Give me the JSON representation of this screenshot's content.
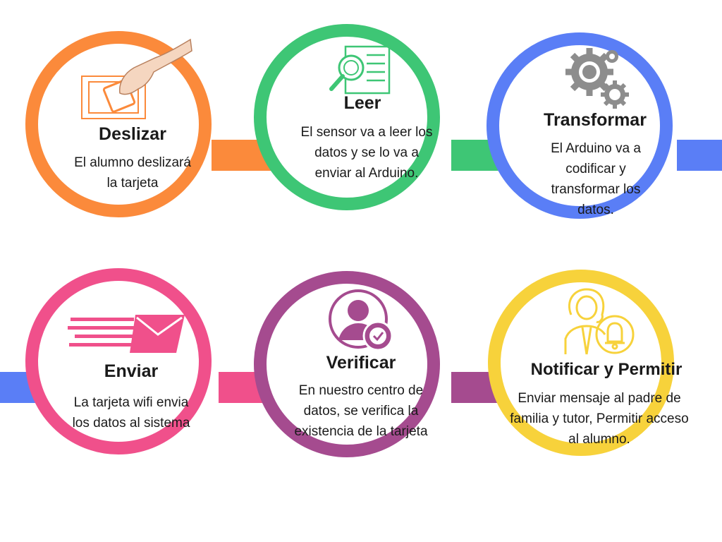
{
  "colors": {
    "orange": "#fb8a3b",
    "green": "#3ec675",
    "blue": "#5a7ef6",
    "pink": "#f0508b",
    "purple": "#a54b8f",
    "yellow": "#f7d23b"
  },
  "steps": [
    {
      "title": "Deslizar",
      "desc": "El alumno deslizará la tarjeta",
      "icon": "hand-card-icon"
    },
    {
      "title": "Leer",
      "desc": "El sensor va a leer los datos y se lo va a enviar al Arduino.",
      "icon": "magnifier-document-icon"
    },
    {
      "title": "Transformar",
      "desc": "El Arduino va a codificar y transformar los datos.",
      "icon": "gears-icon"
    },
    {
      "title": "Enviar",
      "desc": "La tarjeta wifi envia los datos al sistema",
      "icon": "fast-mail-icon"
    },
    {
      "title": "Verificar",
      "desc": "En nuestro centro de datos, se verifica la existencia de la tarjeta",
      "icon": "user-check-icon"
    },
    {
      "title": "Notificar y Permitir",
      "desc": "Enviar mensaje al padre de familia y tutor, Permitir acceso al alumno.",
      "icon": "woman-bell-icon"
    }
  ]
}
